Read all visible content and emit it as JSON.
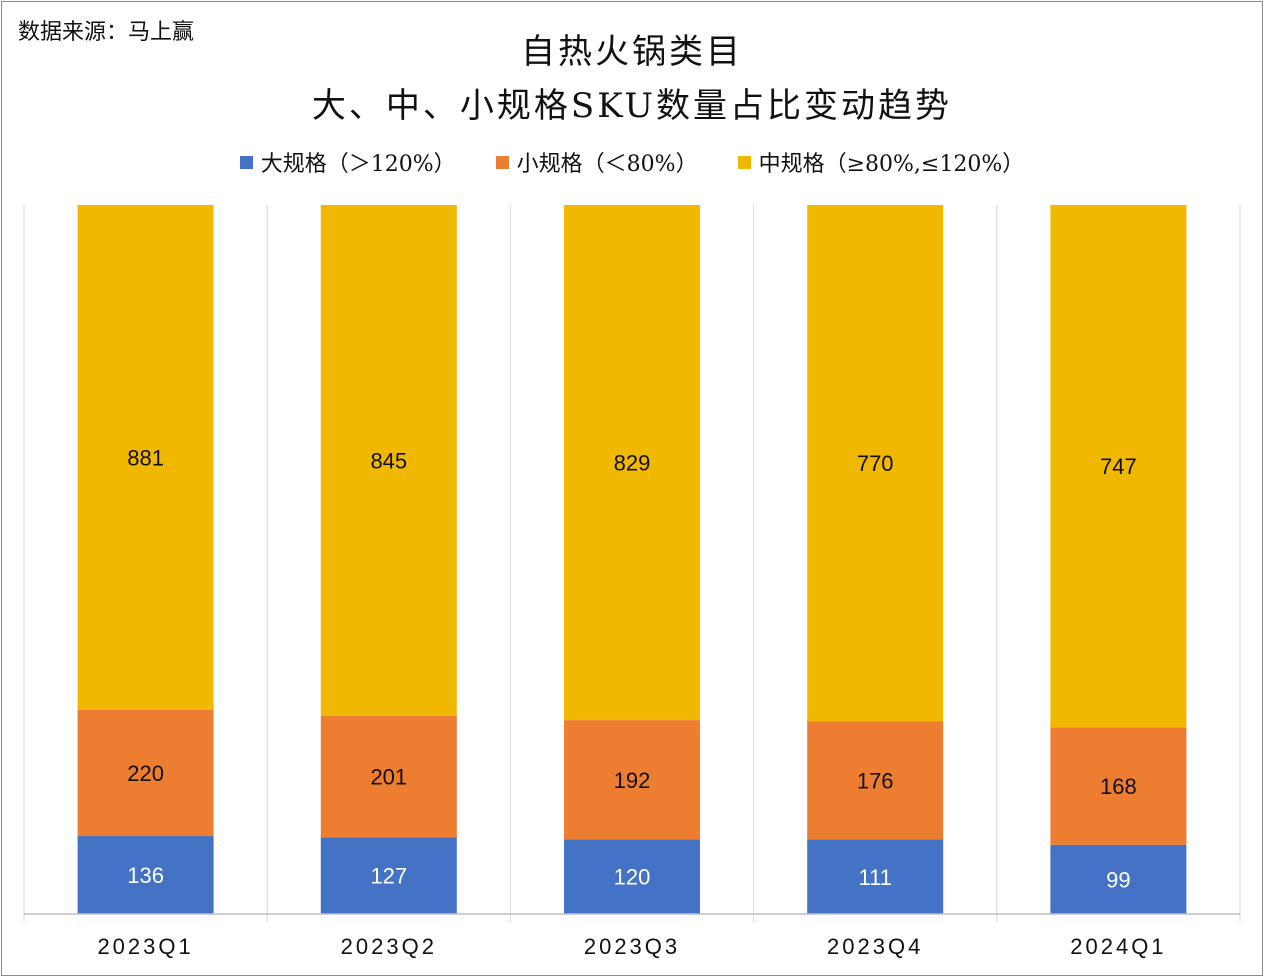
{
  "source_note": "数据来源：马上赢",
  "chart_data": {
    "type": "bar",
    "stacked": true,
    "title": "自热火锅类目",
    "subtitle": "大、中、小规格SKU数量占比变动趋势",
    "categories": [
      "2023Q1",
      "2023Q2",
      "2023Q3",
      "2023Q4",
      "2024Q1"
    ],
    "series": [
      {
        "name": "大规格（＞120%）",
        "color": "#4472C4",
        "values": [
          136,
          127,
          120,
          111,
          99
        ]
      },
      {
        "name": "小规格（＜80%）",
        "color": "#ED7D31",
        "values": [
          220,
          201,
          192,
          176,
          168
        ]
      },
      {
        "name": "中规格（≥80%,≤120%）",
        "color": "#F0B800",
        "values": [
          881,
          845,
          829,
          770,
          747
        ]
      }
    ],
    "normalized": true,
    "ylim": [
      0,
      1
    ],
    "legend": "top",
    "grid": false
  }
}
